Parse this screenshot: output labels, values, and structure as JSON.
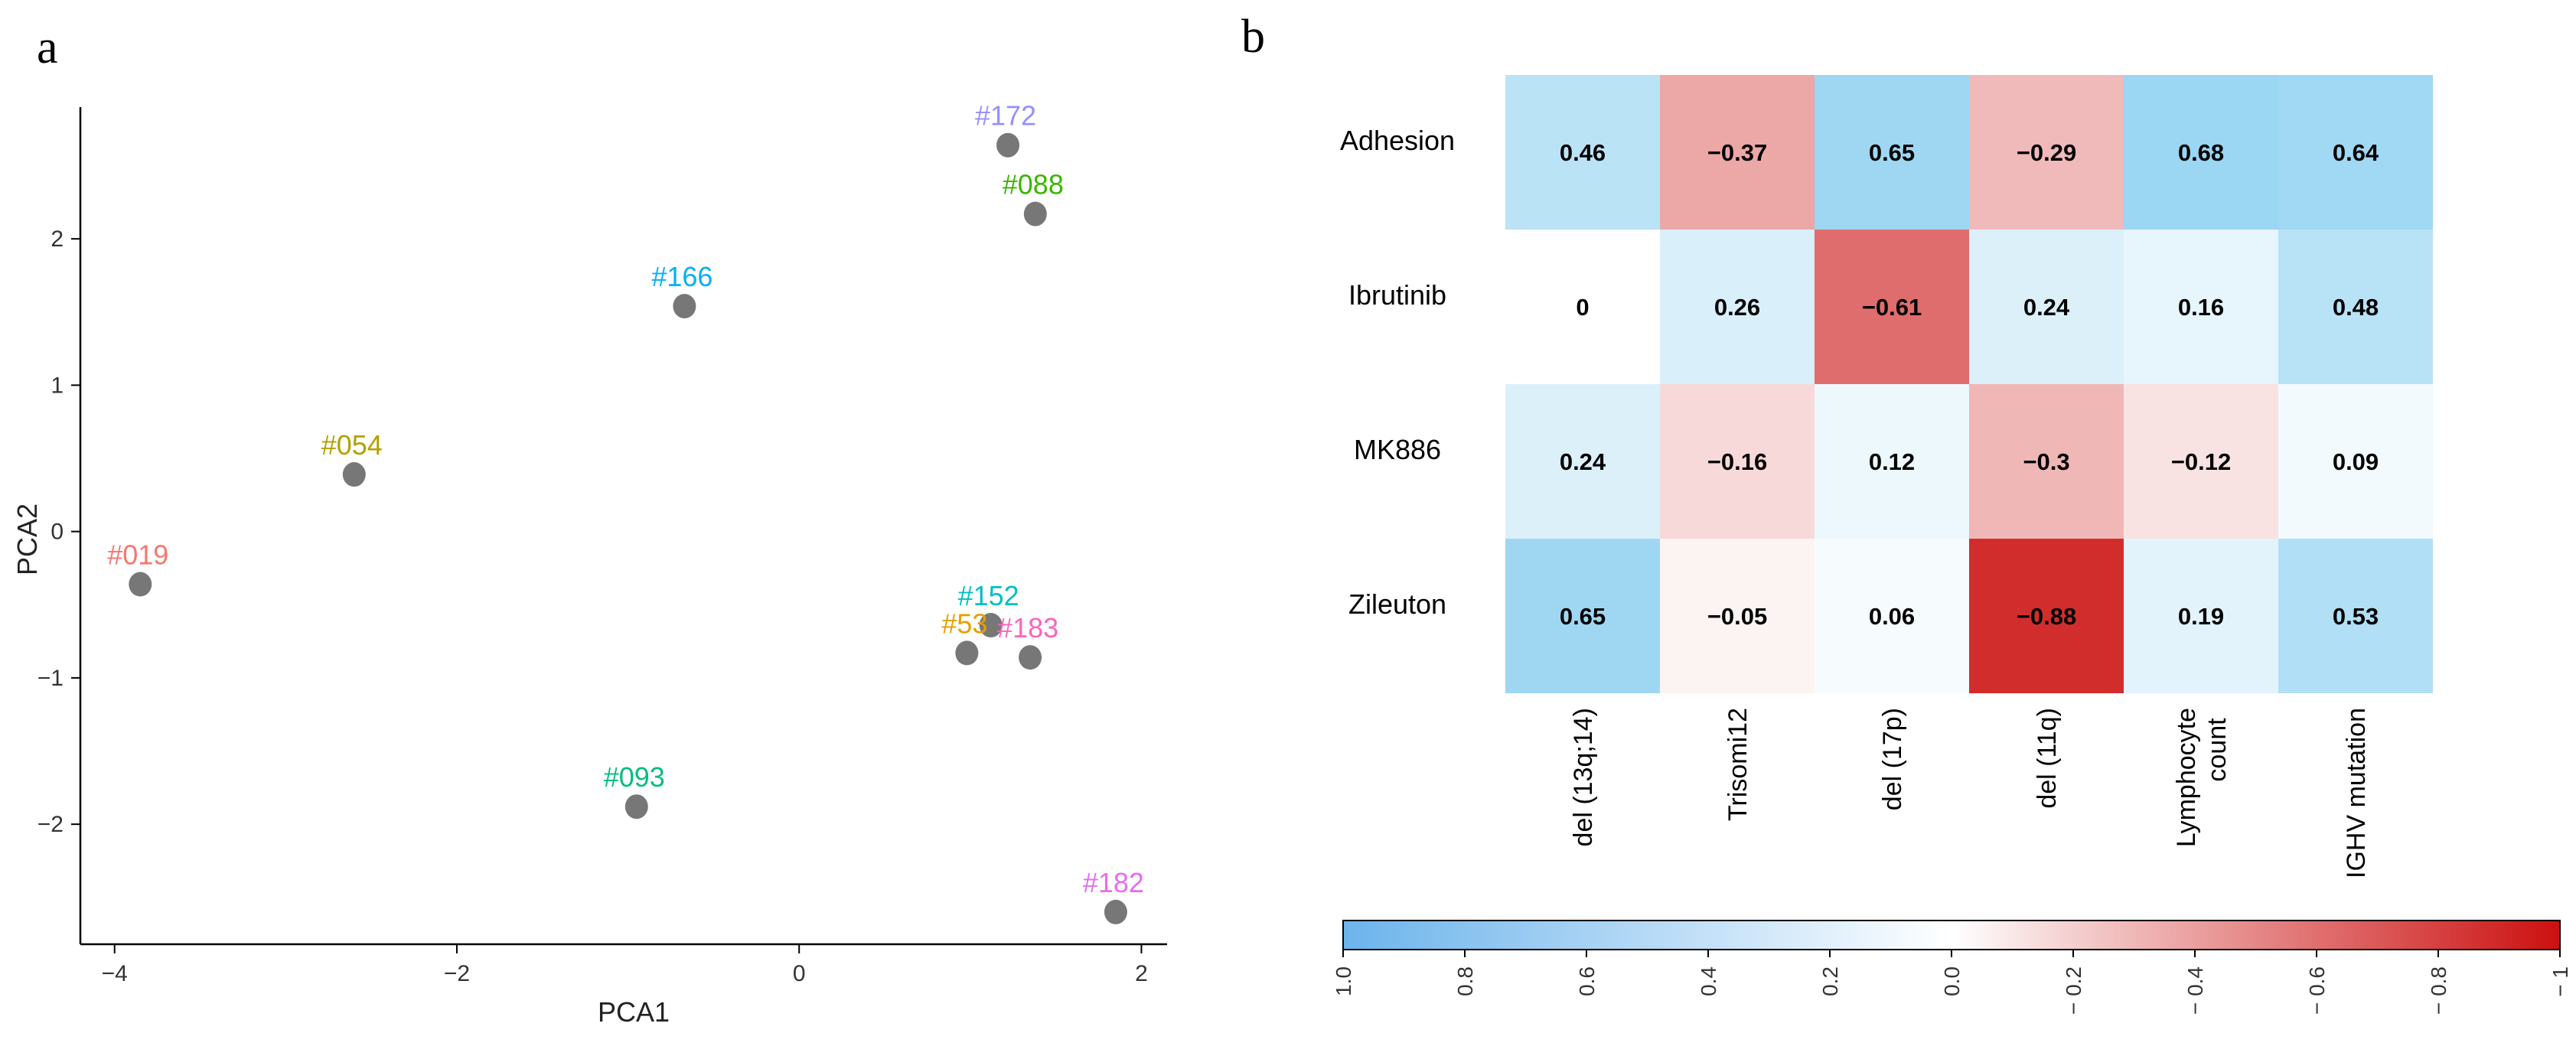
{
  "chart_data": [
    {
      "type": "scatter",
      "panel": "a",
      "xlabel": "PCA1",
      "ylabel": "PCA2",
      "xlim": [
        -4.2,
        2.15
      ],
      "ylim": [
        -2.82,
        2.9
      ],
      "xticks": [
        -4,
        -2,
        0,
        2
      ],
      "yticks": [
        -2,
        -1,
        0,
        1,
        2
      ],
      "tick_labels_x": [
        "−4",
        "−2",
        "0",
        "2"
      ],
      "tick_labels_y": [
        "−2",
        "−1",
        "0",
        "1",
        "2"
      ],
      "grid": false,
      "points": [
        {
          "label": "#019",
          "x": -3.85,
          "y": -0.36,
          "color": "#f8766d"
        },
        {
          "label": "#054",
          "x": -2.6,
          "y": 0.39,
          "color": "#b3a000"
        },
        {
          "label": "#166",
          "x": -0.67,
          "y": 1.54,
          "color": "#00b0f6"
        },
        {
          "label": "#093",
          "x": -0.95,
          "y": -1.88,
          "color": "#00bf7d"
        },
        {
          "label": "#172",
          "x": 1.22,
          "y": 2.64,
          "color": "#9590ff"
        },
        {
          "label": "#088",
          "x": 1.38,
          "y": 2.17,
          "color": "#39b600"
        },
        {
          "label": "#152",
          "x": 1.12,
          "y": -0.64,
          "color": "#00bfc4"
        },
        {
          "label": "#53",
          "x": 0.98,
          "y": -0.83,
          "color": "#e69f00"
        },
        {
          "label": "#183",
          "x": 1.35,
          "y": -0.86,
          "color": "#ff62bc"
        },
        {
          "label": "#182",
          "x": 1.85,
          "y": -2.6,
          "color": "#e76bf3"
        }
      ],
      "marker_color": "#777777"
    },
    {
      "type": "heatmap",
      "panel": "b",
      "rows": [
        "Adhesion",
        "Ibrutinib",
        "MK886",
        "Zileuton"
      ],
      "columns": [
        "del (13q;14)",
        "Trisomi12",
        "del (17p)",
        "del (11q)",
        "Lymphocyte\ncount",
        "IGHV mutation"
      ],
      "values": [
        [
          0.46,
          -0.37,
          0.65,
          -0.29,
          0.68,
          0.64
        ],
        [
          0,
          0.26,
          -0.61,
          0.24,
          0.16,
          0.48
        ],
        [
          0.24,
          -0.16,
          0.12,
          -0.3,
          -0.12,
          0.09
        ],
        [
          0.65,
          -0.05,
          0.06,
          -0.88,
          0.19,
          0.53
        ]
      ],
      "value_labels": [
        [
          "0.46",
          "−0.37",
          "0.65",
          "−0.29",
          "0.68",
          "0.64"
        ],
        [
          "0",
          "0.26",
          "−0.61",
          "0.24",
          "0.16",
          "0.48"
        ],
        [
          "0.24",
          "−0.16",
          "0.12",
          "−0.3",
          "−0.12",
          "0.09"
        ],
        [
          "0.65",
          "−0.05",
          "0.06",
          "−0.88",
          "0.19",
          "0.53"
        ]
      ],
      "colorbar": {
        "range": [
          1,
          -1
        ],
        "ticks": [
          1.0,
          0.8,
          0.6,
          0.4,
          0.2,
          0.0,
          -0.2,
          -0.4,
          -0.6,
          -0.8,
          -1
        ],
        "tick_labels": [
          "1.0",
          "0.8",
          "0.6",
          "0.4",
          "0.2",
          "0.0",
          "− 0.2",
          "− 0.4",
          "− 0.6",
          "− 0.8",
          "− 1"
        ],
        "positive_color": "#6cb4ec",
        "mid_color": "#ffffff",
        "negative_color": "#cc1010",
        "placement": "bottom"
      }
    }
  ]
}
